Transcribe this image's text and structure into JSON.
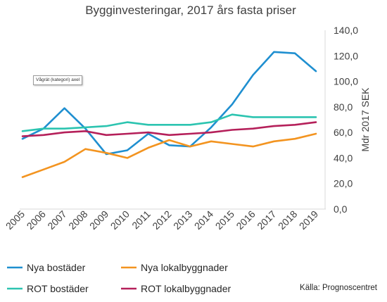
{
  "chart_data": {
    "type": "line",
    "title": "Bygginvesteringar, 2017 års fasta priser",
    "ylabel": "Mdr 2017 SEK",
    "ylim": [
      0,
      140
    ],
    "y_ticks": [
      "0,0",
      "20,0",
      "40,0",
      "60,0",
      "80,0",
      "100,0",
      "120,0",
      "140,0"
    ],
    "y_axis_side": "right",
    "grid": false,
    "legend_position": "bottom",
    "categories": [
      "2005",
      "2006",
      "2007",
      "2008",
      "2009",
      "2010",
      "2011",
      "2012",
      "2013",
      "2014",
      "2015",
      "2016",
      "2017",
      "2018",
      "2019"
    ],
    "series": [
      {
        "name": "Nya bostäder",
        "color": "#1f8fd0",
        "values": [
          55,
          63,
          79,
          63,
          43,
          46,
          59,
          50,
          49,
          64,
          82,
          105,
          123,
          122,
          108
        ]
      },
      {
        "name": "Nya lokalbyggnader",
        "color": "#f39420",
        "values": [
          25,
          31,
          37,
          47,
          44,
          40,
          48,
          54,
          49,
          53,
          51,
          49,
          53,
          55,
          59
        ]
      },
      {
        "name": "ROT bostäder",
        "color": "#2cc4b0",
        "values": [
          61,
          63,
          63,
          64,
          65,
          68,
          66,
          66,
          66,
          68,
          74,
          72,
          72,
          72,
          72
        ]
      },
      {
        "name": "ROT lokalbyggnader",
        "color": "#b5205a",
        "values": [
          57,
          58,
          60,
          61,
          58,
          59,
          60,
          58,
          59,
          60,
          62,
          63,
          65,
          66,
          68
        ]
      }
    ]
  },
  "tooltip": "Vågrät (kategori) axel",
  "source": "Källa: Prognoscentret"
}
